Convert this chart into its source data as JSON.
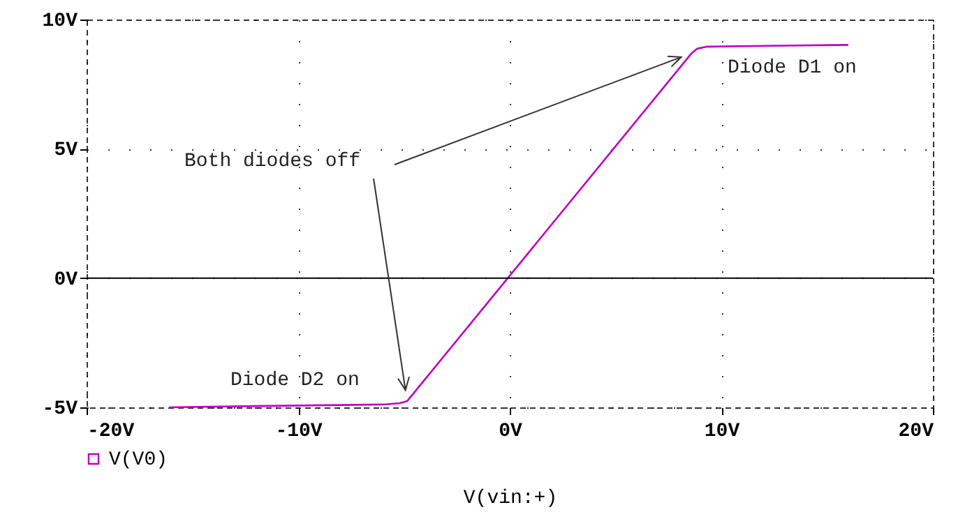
{
  "chart_data": {
    "type": "line",
    "xlabel": "V(vin:+)",
    "x": [
      -16.1,
      -12,
      -6,
      -5.2,
      -4.85,
      8.6,
      8.85,
      9.3,
      12,
      16
    ],
    "series": [
      {
        "name": "V(V0)",
        "color": "#c000c0",
        "values": [
          -5.0,
          -4.95,
          -4.89,
          -4.84,
          -4.76,
          8.7,
          8.87,
          8.95,
          8.98,
          9.02
        ]
      }
    ],
    "xlim": [
      -20,
      20
    ],
    "ylim": [
      -5,
      10
    ],
    "xticks": [
      {
        "value": -20,
        "label": "-20V"
      },
      {
        "value": -10,
        "label": "-10V"
      },
      {
        "value": 0,
        "label": "0V"
      },
      {
        "value": 10,
        "label": "10V"
      },
      {
        "value": 20,
        "label": "20V"
      }
    ],
    "yticks": [
      {
        "value": -5,
        "label": "-5V"
      },
      {
        "value": 0,
        "label": "0V"
      },
      {
        "value": 5,
        "label": "5V"
      },
      {
        "value": 10,
        "label": "10V"
      }
    ],
    "grid": true,
    "legend": "bottom left",
    "ref_lines": [
      {
        "axis": "y",
        "value": 0,
        "color": "#000000"
      }
    ],
    "annotations": [
      "Both diodes off",
      "Diode D1 on",
      "Diode D2 on"
    ]
  }
}
